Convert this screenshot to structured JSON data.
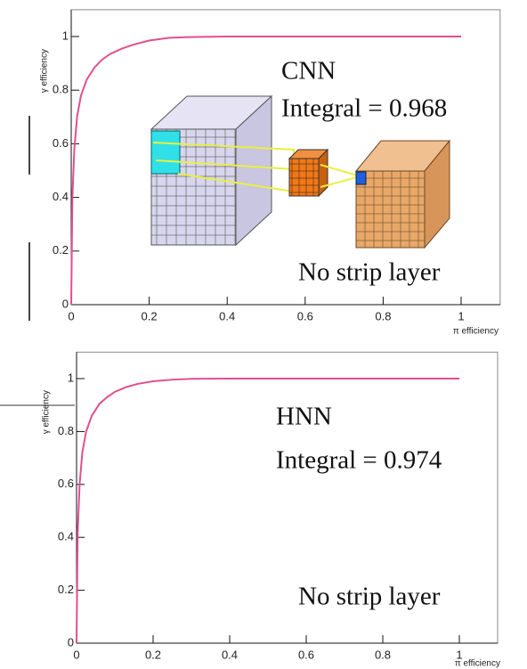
{
  "chart_data": [
    {
      "type": "line",
      "y_label": "γ efficiency",
      "x_label": "π efficiency",
      "annotations": [
        "CNN",
        "Integral = 0.968",
        "No strip layer"
      ],
      "x": [
        0,
        0.003,
        0.008,
        0.015,
        0.025,
        0.04,
        0.06,
        0.08,
        0.1,
        0.13,
        0.16,
        0.2,
        0.25,
        0.3,
        0.4,
        0.6,
        1
      ],
      "values": [
        0,
        0.4,
        0.58,
        0.7,
        0.78,
        0.84,
        0.885,
        0.915,
        0.935,
        0.955,
        0.97,
        0.985,
        0.995,
        0.998,
        1,
        1,
        1
      ],
      "color": "#e0508e",
      "xlim": [
        0,
        1.1
      ],
      "ylim": [
        0,
        1.1
      ],
      "xticks": [
        0,
        0.2,
        0.4,
        0.6,
        0.8,
        1
      ],
      "yticks": [
        0,
        0.2,
        0.4,
        0.6,
        0.8,
        1
      ]
    },
    {
      "type": "line",
      "y_label": "γ efficiency",
      "x_label": "π efficiency",
      "annotations": [
        "HNN",
        "Integral = 0.974",
        "No strip layer"
      ],
      "x": [
        0,
        0.003,
        0.008,
        0.015,
        0.025,
        0.04,
        0.06,
        0.08,
        0.1,
        0.13,
        0.16,
        0.2,
        0.25,
        0.3,
        0.4,
        0.6,
        1
      ],
      "values": [
        0,
        0.42,
        0.6,
        0.72,
        0.8,
        0.86,
        0.905,
        0.93,
        0.95,
        0.968,
        0.98,
        0.99,
        0.996,
        0.999,
        1,
        1,
        1
      ],
      "color": "#e0508e",
      "xlim": [
        0,
        1.1
      ],
      "ylim": [
        0,
        1.1
      ],
      "xticks": [
        0,
        0.2,
        0.4,
        0.6,
        0.8,
        1
      ],
      "yticks": [
        0,
        0.2,
        0.4,
        0.6,
        0.8,
        1
      ]
    }
  ]
}
